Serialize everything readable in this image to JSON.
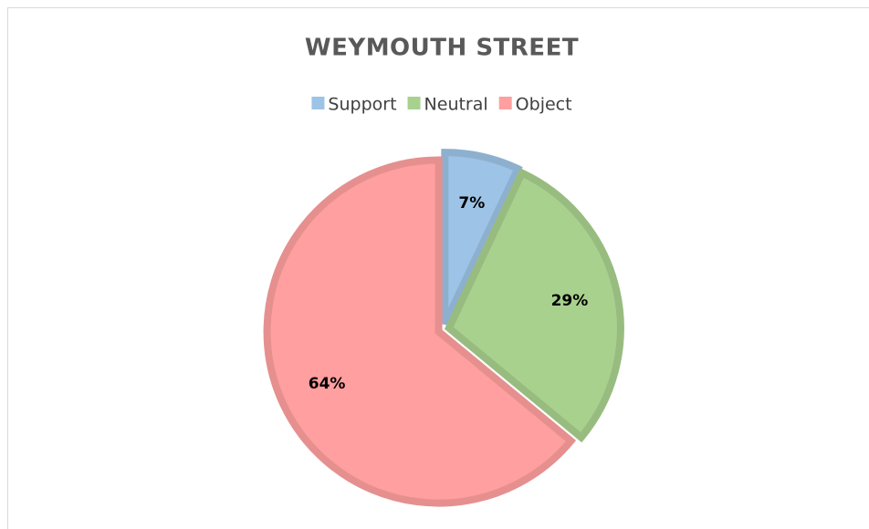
{
  "chart_data": {
    "type": "pie",
    "title": "WEYMOUTH STREET",
    "categories": [
      "Support",
      "Neutral",
      "Object"
    ],
    "values": [
      7,
      29,
      64
    ],
    "value_labels": [
      "7%",
      "29%",
      "64%"
    ],
    "colors": [
      "#9dc3e6",
      "#a9d18e",
      "#ff9f9f"
    ],
    "legend": "top"
  }
}
